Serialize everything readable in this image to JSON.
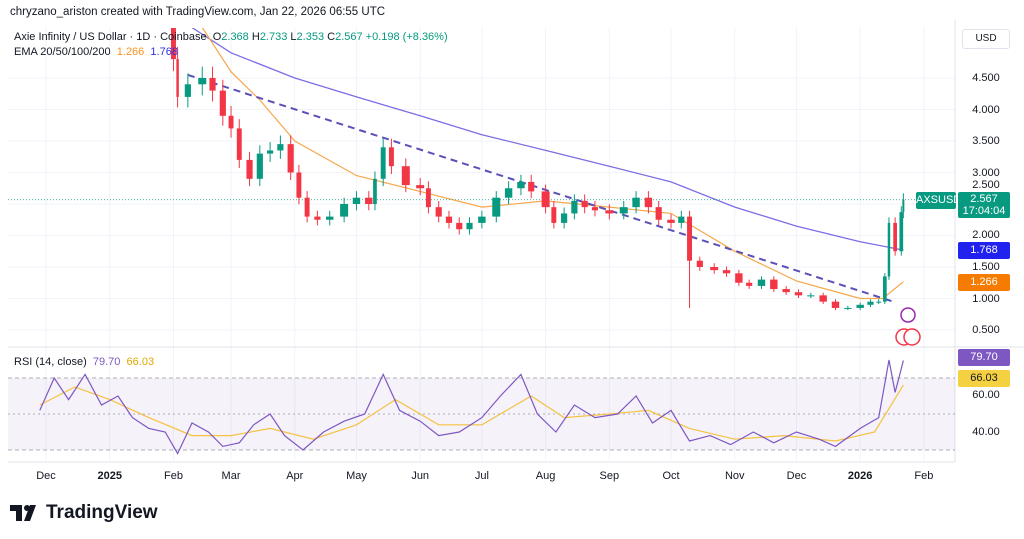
{
  "header": {
    "credit": "chryzano_ariston created with TradingView.com, Jan 22, 2026 06:55 UTC",
    "symbol_desc": "Axie Infinity / US Dollar · 1D · Coinbase",
    "o_label": "O",
    "o": "2.368",
    "h_label": "H",
    "h": "2.733",
    "l_label": "L",
    "l": "2.353",
    "c_label": "C",
    "c": "2.567",
    "change": "+0.198 (+8.36%)",
    "ema_label": "EMA 20/50/100/200",
    "ema_a": "1.266",
    "ema_b": "1.768",
    "currency": "USD"
  },
  "price_tags": {
    "symbol": "AXSUSD",
    "last": "2.567",
    "countdown": "17:04:04",
    "ema_blue": "1.768",
    "ema_orange": "1.266"
  },
  "rsi": {
    "label": "RSI (14, close)",
    "value": "79.70",
    "ma": "66.03"
  },
  "brand": {
    "name": "TradingView"
  },
  "colors": {
    "up": "#089981",
    "down": "#f23645",
    "ema50": "#f7a74a",
    "ema200": "#7b6ee6",
    "trend": "#5b4fb8",
    "rsi": "#7e57c2",
    "rsi_ma": "#f5c242",
    "blue_tag": "#2222ee",
    "orange_tag": "#f57c00"
  },
  "chart_data": [
    {
      "type": "candlestick",
      "title": "Axie Infinity / US Dollar · 1D · Coinbase",
      "ylim": [
        0.3,
        5.3
      ],
      "y_ticks": [
        "4.500",
        "4.000",
        "3.500",
        "3.000",
        "2.500",
        "2.000",
        "1.500",
        "1.000",
        "0.500"
      ],
      "x_ticks": [
        "Dec",
        "2025",
        "Feb",
        "Mar",
        "Apr",
        "May",
        "Jun",
        "Jul",
        "Aug",
        "Sep",
        "Oct",
        "Nov",
        "Dec",
        "2026",
        "Feb"
      ],
      "close": [
        [
          "2025-01-28",
          6.0
        ],
        [
          "2025-02-01",
          4.8
        ],
        [
          "2025-02-03",
          4.2
        ],
        [
          "2025-02-08",
          4.4
        ],
        [
          "2025-02-15",
          4.5
        ],
        [
          "2025-02-20",
          4.3
        ],
        [
          "2025-02-25",
          3.9
        ],
        [
          "2025-03-01",
          3.7
        ],
        [
          "2025-03-05",
          3.2
        ],
        [
          "2025-03-10",
          2.9
        ],
        [
          "2025-03-15",
          3.3
        ],
        [
          "2025-03-20",
          3.35
        ],
        [
          "2025-03-25",
          3.45
        ],
        [
          "2025-03-30",
          3.0
        ],
        [
          "2025-04-03",
          2.6
        ],
        [
          "2025-04-07",
          2.3
        ],
        [
          "2025-04-12",
          2.25
        ],
        [
          "2025-04-18",
          2.3
        ],
        [
          "2025-04-25",
          2.5
        ],
        [
          "2025-05-01",
          2.6
        ],
        [
          "2025-05-07",
          2.5
        ],
        [
          "2025-05-10",
          2.9
        ],
        [
          "2025-05-14",
          3.4
        ],
        [
          "2025-05-18",
          3.1
        ],
        [
          "2025-05-25",
          2.8
        ],
        [
          "2025-06-01",
          2.75
        ],
        [
          "2025-06-05",
          2.45
        ],
        [
          "2025-06-10",
          2.3
        ],
        [
          "2025-06-15",
          2.2
        ],
        [
          "2025-06-20",
          2.1
        ],
        [
          "2025-06-25",
          2.2
        ],
        [
          "2025-07-01",
          2.3
        ],
        [
          "2025-07-08",
          2.6
        ],
        [
          "2025-07-14",
          2.75
        ],
        [
          "2025-07-20",
          2.85
        ],
        [
          "2025-07-25",
          2.7
        ],
        [
          "2025-08-01",
          2.45
        ],
        [
          "2025-08-05",
          2.2
        ],
        [
          "2025-08-10",
          2.35
        ],
        [
          "2025-08-15",
          2.55
        ],
        [
          "2025-08-20",
          2.45
        ],
        [
          "2025-08-25",
          2.4
        ],
        [
          "2025-09-01",
          2.35
        ],
        [
          "2025-09-08",
          2.45
        ],
        [
          "2025-09-14",
          2.6
        ],
        [
          "2025-09-20",
          2.45
        ],
        [
          "2025-09-25",
          2.25
        ],
        [
          "2025-10-01",
          2.2
        ],
        [
          "2025-10-06",
          2.3
        ],
        [
          "2025-10-10",
          1.6
        ],
        [
          "2025-10-15",
          1.5
        ],
        [
          "2025-10-22",
          1.45
        ],
        [
          "2025-10-28",
          1.4
        ],
        [
          "2025-11-03",
          1.25
        ],
        [
          "2025-11-08",
          1.2
        ],
        [
          "2025-11-14",
          1.3
        ],
        [
          "2025-11-20",
          1.15
        ],
        [
          "2025-11-26",
          1.1
        ],
        [
          "2025-12-02",
          1.05
        ],
        [
          "2025-12-08",
          1.05
        ],
        [
          "2025-12-14",
          0.95
        ],
        [
          "2025-12-20",
          0.85
        ],
        [
          "2025-12-26",
          0.85
        ],
        [
          "2026-01-01",
          0.9
        ],
        [
          "2026-01-06",
          0.95
        ],
        [
          "2026-01-10",
          0.95
        ],
        [
          "2026-01-13",
          1.35
        ],
        [
          "2026-01-15",
          2.2
        ],
        [
          "2026-01-18",
          1.75
        ],
        [
          "2026-01-21",
          2.37
        ],
        [
          "2026-01-22",
          2.567
        ]
      ],
      "ema50": [
        [
          "2025-02-15",
          5.3
        ],
        [
          "2025-03-01",
          4.6
        ],
        [
          "2025-03-15",
          4.15
        ],
        [
          "2025-04-01",
          3.5
        ],
        [
          "2025-05-01",
          2.95
        ],
        [
          "2025-06-01",
          2.7
        ],
        [
          "2025-07-01",
          2.45
        ],
        [
          "2025-08-01",
          2.55
        ],
        [
          "2025-09-01",
          2.45
        ],
        [
          "2025-10-01",
          2.35
        ],
        [
          "2025-11-01",
          1.75
        ],
        [
          "2025-12-01",
          1.28
        ],
        [
          "2026-01-01",
          1.0
        ],
        [
          "2026-01-12",
          1.0
        ],
        [
          "2026-01-22",
          1.266
        ]
      ],
      "ema200": [
        [
          "2025-02-10",
          5.3
        ],
        [
          "2025-03-01",
          4.9
        ],
        [
          "2025-04-01",
          4.5
        ],
        [
          "2025-05-01",
          4.2
        ],
        [
          "2025-06-01",
          3.9
        ],
        [
          "2025-07-01",
          3.6
        ],
        [
          "2025-08-01",
          3.35
        ],
        [
          "2025-09-01",
          3.1
        ],
        [
          "2025-10-01",
          2.85
        ],
        [
          "2025-11-01",
          2.45
        ],
        [
          "2025-12-01",
          2.15
        ],
        [
          "2026-01-01",
          1.9
        ],
        [
          "2026-01-22",
          1.768
        ]
      ],
      "trendline": [
        [
          "2025-02-08",
          4.55
        ],
        [
          "2026-01-17",
          0.95
        ]
      ],
      "last_price": 2.567
    },
    {
      "type": "line",
      "title": "RSI (14, close)",
      "ylim": [
        20,
        85
      ],
      "y_ticks": [
        "60.00",
        "40.00"
      ],
      "bands": [
        30,
        70
      ],
      "rsi": [
        [
          "2024-11-28",
          52
        ],
        [
          "2024-12-05",
          70
        ],
        [
          "2024-12-12",
          58
        ],
        [
          "2024-12-20",
          72
        ],
        [
          "2024-12-28",
          55
        ],
        [
          "2025-01-05",
          60
        ],
        [
          "2025-01-12",
          48
        ],
        [
          "2025-01-20",
          42
        ],
        [
          "2025-01-28",
          40
        ],
        [
          "2025-02-03",
          28
        ],
        [
          "2025-02-10",
          45
        ],
        [
          "2025-02-18",
          40
        ],
        [
          "2025-02-25",
          32
        ],
        [
          "2025-03-05",
          34
        ],
        [
          "2025-03-12",
          44
        ],
        [
          "2025-03-20",
          50
        ],
        [
          "2025-03-27",
          38
        ],
        [
          "2025-04-05",
          30
        ],
        [
          "2025-04-15",
          40
        ],
        [
          "2025-04-25",
          46
        ],
        [
          "2025-05-05",
          50
        ],
        [
          "2025-05-14",
          72
        ],
        [
          "2025-05-22",
          52
        ],
        [
          "2025-06-01",
          46
        ],
        [
          "2025-06-10",
          38
        ],
        [
          "2025-06-20",
          40
        ],
        [
          "2025-07-01",
          48
        ],
        [
          "2025-07-10",
          60
        ],
        [
          "2025-07-20",
          72
        ],
        [
          "2025-07-28",
          50
        ],
        [
          "2025-08-06",
          40
        ],
        [
          "2025-08-15",
          55
        ],
        [
          "2025-08-25",
          48
        ],
        [
          "2025-09-05",
          50
        ],
        [
          "2025-09-14",
          60
        ],
        [
          "2025-09-22",
          45
        ],
        [
          "2025-10-01",
          52
        ],
        [
          "2025-10-10",
          35
        ],
        [
          "2025-10-20",
          38
        ],
        [
          "2025-10-30",
          33
        ],
        [
          "2025-11-10",
          40
        ],
        [
          "2025-11-20",
          34
        ],
        [
          "2025-12-01",
          40
        ],
        [
          "2025-12-12",
          36
        ],
        [
          "2025-12-20",
          32
        ],
        [
          "2026-01-01",
          42
        ],
        [
          "2026-01-10",
          48
        ],
        [
          "2026-01-15",
          80
        ],
        [
          "2026-01-18",
          62
        ],
        [
          "2026-01-22",
          79.7
        ]
      ],
      "rsi_ma": [
        [
          "2024-11-28",
          55
        ],
        [
          "2024-12-15",
          65
        ],
        [
          "2025-01-01",
          58
        ],
        [
          "2025-01-20",
          48
        ],
        [
          "2025-02-10",
          38
        ],
        [
          "2025-03-01",
          38
        ],
        [
          "2025-03-20",
          42
        ],
        [
          "2025-04-10",
          36
        ],
        [
          "2025-05-01",
          44
        ],
        [
          "2025-05-20",
          58
        ],
        [
          "2025-06-10",
          44
        ],
        [
          "2025-07-01",
          44
        ],
        [
          "2025-07-25",
          60
        ],
        [
          "2025-08-10",
          48
        ],
        [
          "2025-09-01",
          50
        ],
        [
          "2025-09-20",
          52
        ],
        [
          "2025-10-10",
          42
        ],
        [
          "2025-11-01",
          36
        ],
        [
          "2025-11-25",
          38
        ],
        [
          "2025-12-20",
          35
        ],
        [
          "2026-01-08",
          40
        ],
        [
          "2026-01-22",
          66.03
        ]
      ]
    }
  ]
}
